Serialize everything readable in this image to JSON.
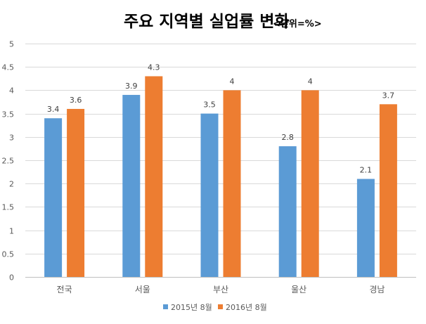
{
  "chart_data": {
    "type": "bar",
    "title": "주요 지역별 실업률 변화",
    "unit_label": "<단위=%>",
    "categories": [
      "전국",
      "서울",
      "부산",
      "울산",
      "경남"
    ],
    "series": [
      {
        "name": "2015년 8월",
        "color": "#5B9BD5",
        "values": [
          3.4,
          3.9,
          3.5,
          2.8,
          2.1
        ]
      },
      {
        "name": "2016년 8월",
        "color": "#ED7D31",
        "values": [
          3.6,
          4.3,
          4,
          4,
          3.7
        ]
      }
    ],
    "ylim": [
      0,
      5
    ],
    "y_ticks": [
      0,
      0.5,
      1,
      1.5,
      2,
      2.5,
      3,
      3.5,
      4,
      4.5,
      5
    ],
    "xlabel": "",
    "ylabel": "",
    "grid": true,
    "legend_position": "bottom"
  }
}
